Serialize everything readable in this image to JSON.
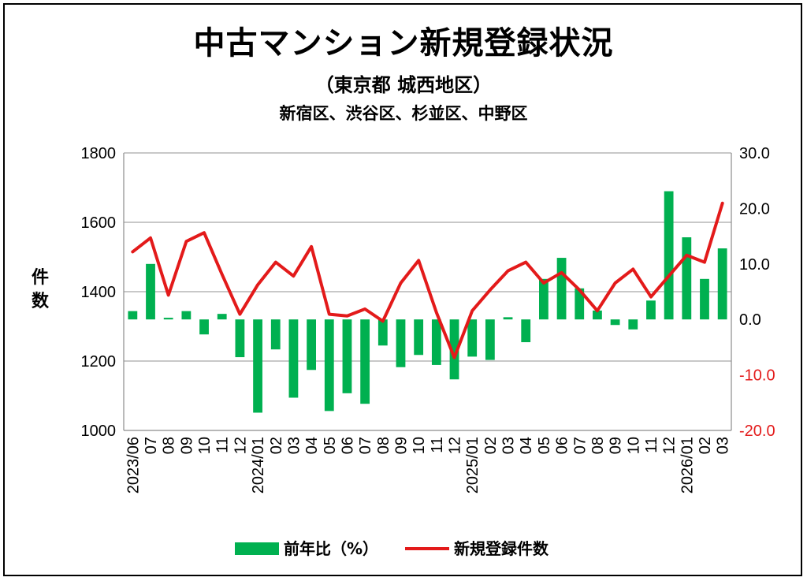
{
  "title": "中古マンション新規登録状況",
  "subtitle": "（東京都 城西地区）",
  "subtitle2": "新宿区、渋谷区、杉並区、中野区",
  "ylabel_left": "件数",
  "legend": {
    "bar": "前年比（%）",
    "line": "新規登録件数"
  },
  "colors": {
    "bar": "#00b050",
    "line": "#e31a1a",
    "right_axis_negative": "#e31a1a",
    "grid": "#a6a6a6"
  },
  "left_ticks": [
    "1000",
    "1200",
    "1400",
    "1600",
    "1800"
  ],
  "right_ticks": [
    "-20.0",
    "-10.0",
    "0.0",
    "10.0",
    "20.0",
    "30.0"
  ],
  "chart_data": {
    "type": "bar+line",
    "categories": [
      "2023/06",
      "07",
      "08",
      "09",
      "10",
      "11",
      "12",
      "2024/01",
      "02",
      "03",
      "04",
      "05",
      "06",
      "07",
      "08",
      "09",
      "10",
      "11",
      "12",
      "2025/01",
      "02",
      "03",
      "04",
      "05",
      "06",
      "07",
      "08",
      "09",
      "10",
      "11",
      "12",
      "2026/01",
      "02",
      "03"
    ],
    "series": [
      {
        "name": "前年比（%）",
        "type": "bar",
        "axis": "right",
        "values": [
          1.5,
          10.0,
          0.3,
          1.5,
          -2.7,
          1.0,
          -6.8,
          -16.8,
          -5.4,
          -14.1,
          -9.1,
          -16.5,
          -13.3,
          -15.2,
          -4.7,
          -8.6,
          -6.4,
          -8.2,
          -10.8,
          -6.7,
          -7.3,
          0.4,
          -4.1,
          7.3,
          11.1,
          5.6,
          1.6,
          -1.0,
          -1.8,
          3.4,
          23.1,
          14.8,
          7.3,
          12.8
        ]
      },
      {
        "name": "新規登録件数",
        "type": "line",
        "axis": "left",
        "values": [
          1515,
          1555,
          1390,
          1545,
          1570,
          1450,
          1335,
          1420,
          1485,
          1445,
          1530,
          1335,
          1330,
          1350,
          1315,
          1425,
          1490,
          1340,
          1210,
          1345,
          1405,
          1460,
          1485,
          1425,
          1455,
          1405,
          1345,
          1425,
          1465,
          1385,
          1445,
          1505,
          1485,
          1655
        ]
      }
    ],
    "ylim_left": [
      1000,
      1800
    ],
    "ylim_right": [
      -20,
      30
    ],
    "ylabel": "件数",
    "grid": true,
    "legend_position": "bottom"
  }
}
